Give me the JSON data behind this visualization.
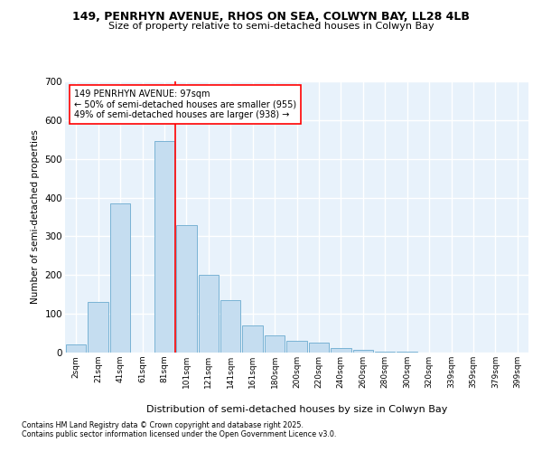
{
  "title1": "149, PENRHYN AVENUE, RHOS ON SEA, COLWYN BAY, LL28 4LB",
  "title2": "Size of property relative to semi-detached houses in Colwyn Bay",
  "xlabel": "Distribution of semi-detached houses by size in Colwyn Bay",
  "ylabel": "Number of semi-detached properties",
  "categories": [
    "2sqm",
    "21sqm",
    "41sqm",
    "61sqm",
    "81sqm",
    "101sqm",
    "121sqm",
    "141sqm",
    "161sqm",
    "180sqm",
    "200sqm",
    "220sqm",
    "240sqm",
    "260sqm",
    "280sqm",
    "300sqm",
    "320sqm",
    "339sqm",
    "359sqm",
    "379sqm",
    "399sqm"
  ],
  "bar_values": [
    20,
    130,
    385,
    0,
    545,
    330,
    200,
    135,
    70,
    45,
    30,
    25,
    12,
    7,
    2,
    2,
    0,
    0,
    0,
    0,
    0
  ],
  "bar_color": "#c5ddf0",
  "bar_edge_color": "#7ab3d4",
  "red_line_x": 4.5,
  "annotation_line1": "149 PENRHYN AVENUE: 97sqm",
  "annotation_line2": "← 50% of semi-detached houses are smaller (955)",
  "annotation_line3": "49% of semi-detached houses are larger (938) →",
  "ylim": [
    0,
    700
  ],
  "yticks": [
    0,
    100,
    200,
    300,
    400,
    500,
    600,
    700
  ],
  "footer1": "Contains HM Land Registry data © Crown copyright and database right 2025.",
  "footer2": "Contains public sector information licensed under the Open Government Licence v3.0.",
  "bg_color": "#e8f2fb",
  "grid_color": "#ffffff"
}
